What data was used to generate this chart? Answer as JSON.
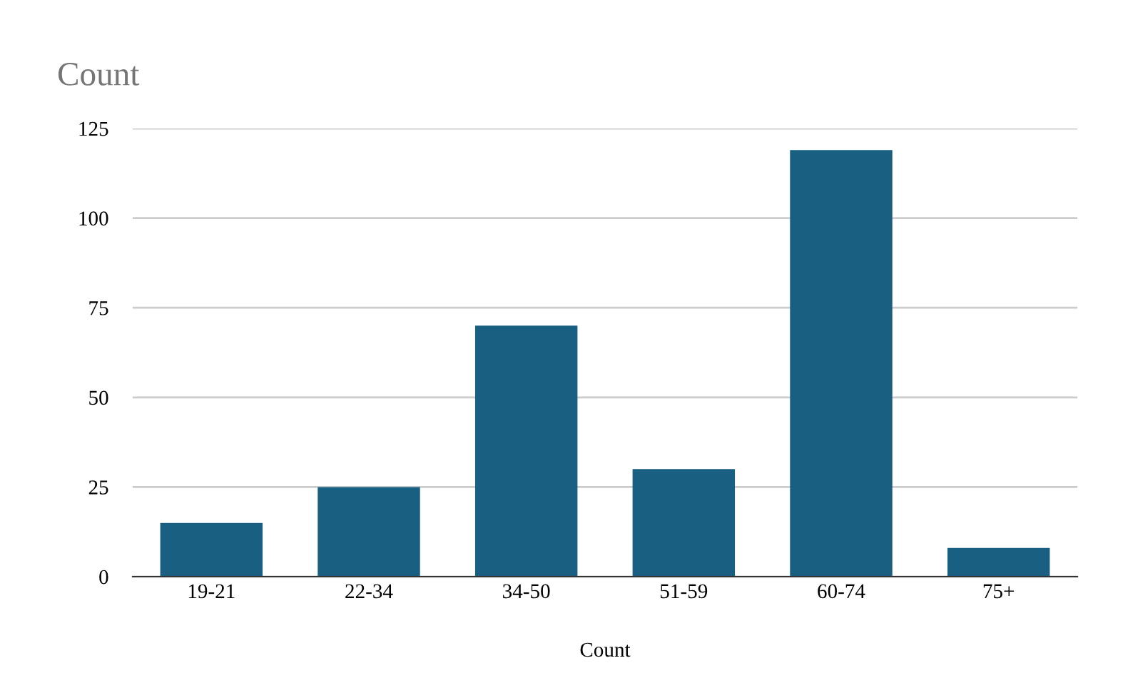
{
  "chart_data": {
    "type": "bar",
    "title": "Count",
    "xlabel": "Count",
    "categories": [
      "19-21",
      "22-34",
      "34-50",
      "51-59",
      "60-74",
      "75+"
    ],
    "values": [
      15,
      25,
      70,
      30,
      119,
      8
    ],
    "color": "#185f82",
    "ylim": [
      0,
      125
    ],
    "yticks": [
      0,
      25,
      50,
      75,
      100,
      125
    ],
    "grid": "y"
  }
}
